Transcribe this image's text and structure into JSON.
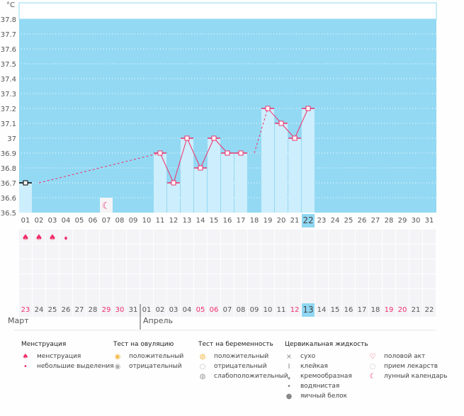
{
  "chart_data": {
    "type": "line",
    "ylabel": "°C",
    "ylim": [
      36.5,
      37.8
    ],
    "yticks": [
      "37.8",
      "37.7",
      "37.6",
      "37.5",
      "37.4",
      "37.3",
      "37.2",
      "37.1",
      "37",
      "36.9",
      "36.8",
      "36.7",
      "36.6",
      "36.5"
    ],
    "cycle_days": [
      "01",
      "02",
      "03",
      "04",
      "05",
      "06",
      "07",
      "08",
      "09",
      "10",
      "11",
      "12",
      "13",
      "14",
      "15",
      "16",
      "17",
      "18",
      "19",
      "20",
      "21",
      "22",
      "23",
      "24",
      "25",
      "26",
      "27",
      "28",
      "29",
      "30",
      "31"
    ],
    "current_cycle_day": "22",
    "series": [
      {
        "points": [
          [
            1,
            36.7
          ],
          [
            11,
            36.9
          ],
          [
            12,
            36.7
          ],
          [
            13,
            37.0
          ],
          [
            14,
            36.8
          ],
          [
            15,
            37.0
          ],
          [
            16,
            36.9
          ],
          [
            17,
            36.9
          ],
          [
            19,
            37.2
          ],
          [
            20,
            37.1
          ],
          [
            21,
            37.0
          ],
          [
            22,
            37.2
          ]
        ]
      }
    ],
    "interpolated": [
      [
        2,
        36.7
      ],
      [
        18,
        36.9
      ]
    ],
    "grid": true,
    "colors": {
      "background": "#93d9f3",
      "bar": "#cdeefc",
      "line": "#f0306a",
      "first_point": "#000000"
    },
    "moon_day": 7,
    "dates": [
      {
        "d": "23",
        "red": true
      },
      {
        "d": "24"
      },
      {
        "d": "25"
      },
      {
        "d": "26"
      },
      {
        "d": "27"
      },
      {
        "d": "28"
      },
      {
        "d": "29",
        "red": true
      },
      {
        "d": "30",
        "red": true
      },
      {
        "d": "31"
      },
      {
        "d": "01"
      },
      {
        "d": "02"
      },
      {
        "d": "03"
      },
      {
        "d": "04"
      },
      {
        "d": "05",
        "red": true
      },
      {
        "d": "06",
        "red": true
      },
      {
        "d": "07"
      },
      {
        "d": "08"
      },
      {
        "d": "09"
      },
      {
        "d": "10"
      },
      {
        "d": "11"
      },
      {
        "d": "12",
        "red": true
      },
      {
        "d": "13",
        "today": true
      },
      {
        "d": "14"
      },
      {
        "d": "15"
      },
      {
        "d": "16"
      },
      {
        "d": "17"
      },
      {
        "d": "18"
      },
      {
        "d": "19",
        "red": true
      },
      {
        "d": "20",
        "red": true
      },
      {
        "d": "21"
      },
      {
        "d": "22"
      }
    ],
    "menstruation": [
      "heavy",
      "heavy",
      "heavy",
      "light"
    ],
    "months": [
      "Март",
      "Апрель"
    ]
  },
  "legend": [
    {
      "title": "Менструация",
      "items": [
        {
          "icon": "drops-icon",
          "glyph": "♠",
          "color": "#f0306a",
          "label": "менструация"
        },
        {
          "icon": "drop-icon",
          "glyph": "•",
          "color": "#f0306a",
          "label": "небольшие выделения"
        }
      ]
    },
    {
      "title": "Тест на овуляцию",
      "items": [
        {
          "icon": "test-positive-icon",
          "glyph": "◉",
          "color": "#f5b94a",
          "label": "положительный"
        },
        {
          "icon": "test-negative-icon",
          "glyph": "◉",
          "color": "#aaaaaa",
          "label": "отрицательный"
        }
      ]
    },
    {
      "title": "Тест на беременность",
      "items": [
        {
          "icon": "preg-positive-icon",
          "glyph": "◍",
          "color": "#f5b94a",
          "label": "положительный"
        },
        {
          "icon": "preg-negative-icon",
          "glyph": "○",
          "color": "#bbbbbb",
          "label": "отрицательный"
        },
        {
          "icon": "preg-weak-icon",
          "glyph": "◍",
          "color": "#999999",
          "label": "слабоположительный"
        }
      ]
    },
    {
      "title": "Цервикальная жидкость",
      "items": [
        {
          "icon": "dry-icon",
          "glyph": "×",
          "color": "#888888",
          "label": "сухо"
        },
        {
          "icon": "sticky-icon",
          "glyph": "I",
          "color": "#888888",
          "label": "клейкая"
        },
        {
          "icon": "creamy-icon",
          "glyph": "❟",
          "color": "#888888",
          "label": "кремообразная"
        },
        {
          "icon": "watery-icon",
          "glyph": "•",
          "color": "#888888",
          "label": "водянистая"
        },
        {
          "icon": "eggwhite-icon",
          "glyph": "●",
          "color": "#888888",
          "label": "яичный белок"
        }
      ]
    },
    {
      "title": "",
      "items": [
        {
          "icon": "heart-icon",
          "glyph": "♡",
          "color": "#f0306a",
          "label": "половой акт"
        },
        {
          "icon": "pill-icon",
          "glyph": "◌",
          "color": "#aaaaaa",
          "label": "прием лекарств"
        },
        {
          "icon": "moon-icon",
          "glyph": "☾",
          "color": "#f0306a",
          "label": "лунный календарь"
        }
      ]
    }
  ]
}
